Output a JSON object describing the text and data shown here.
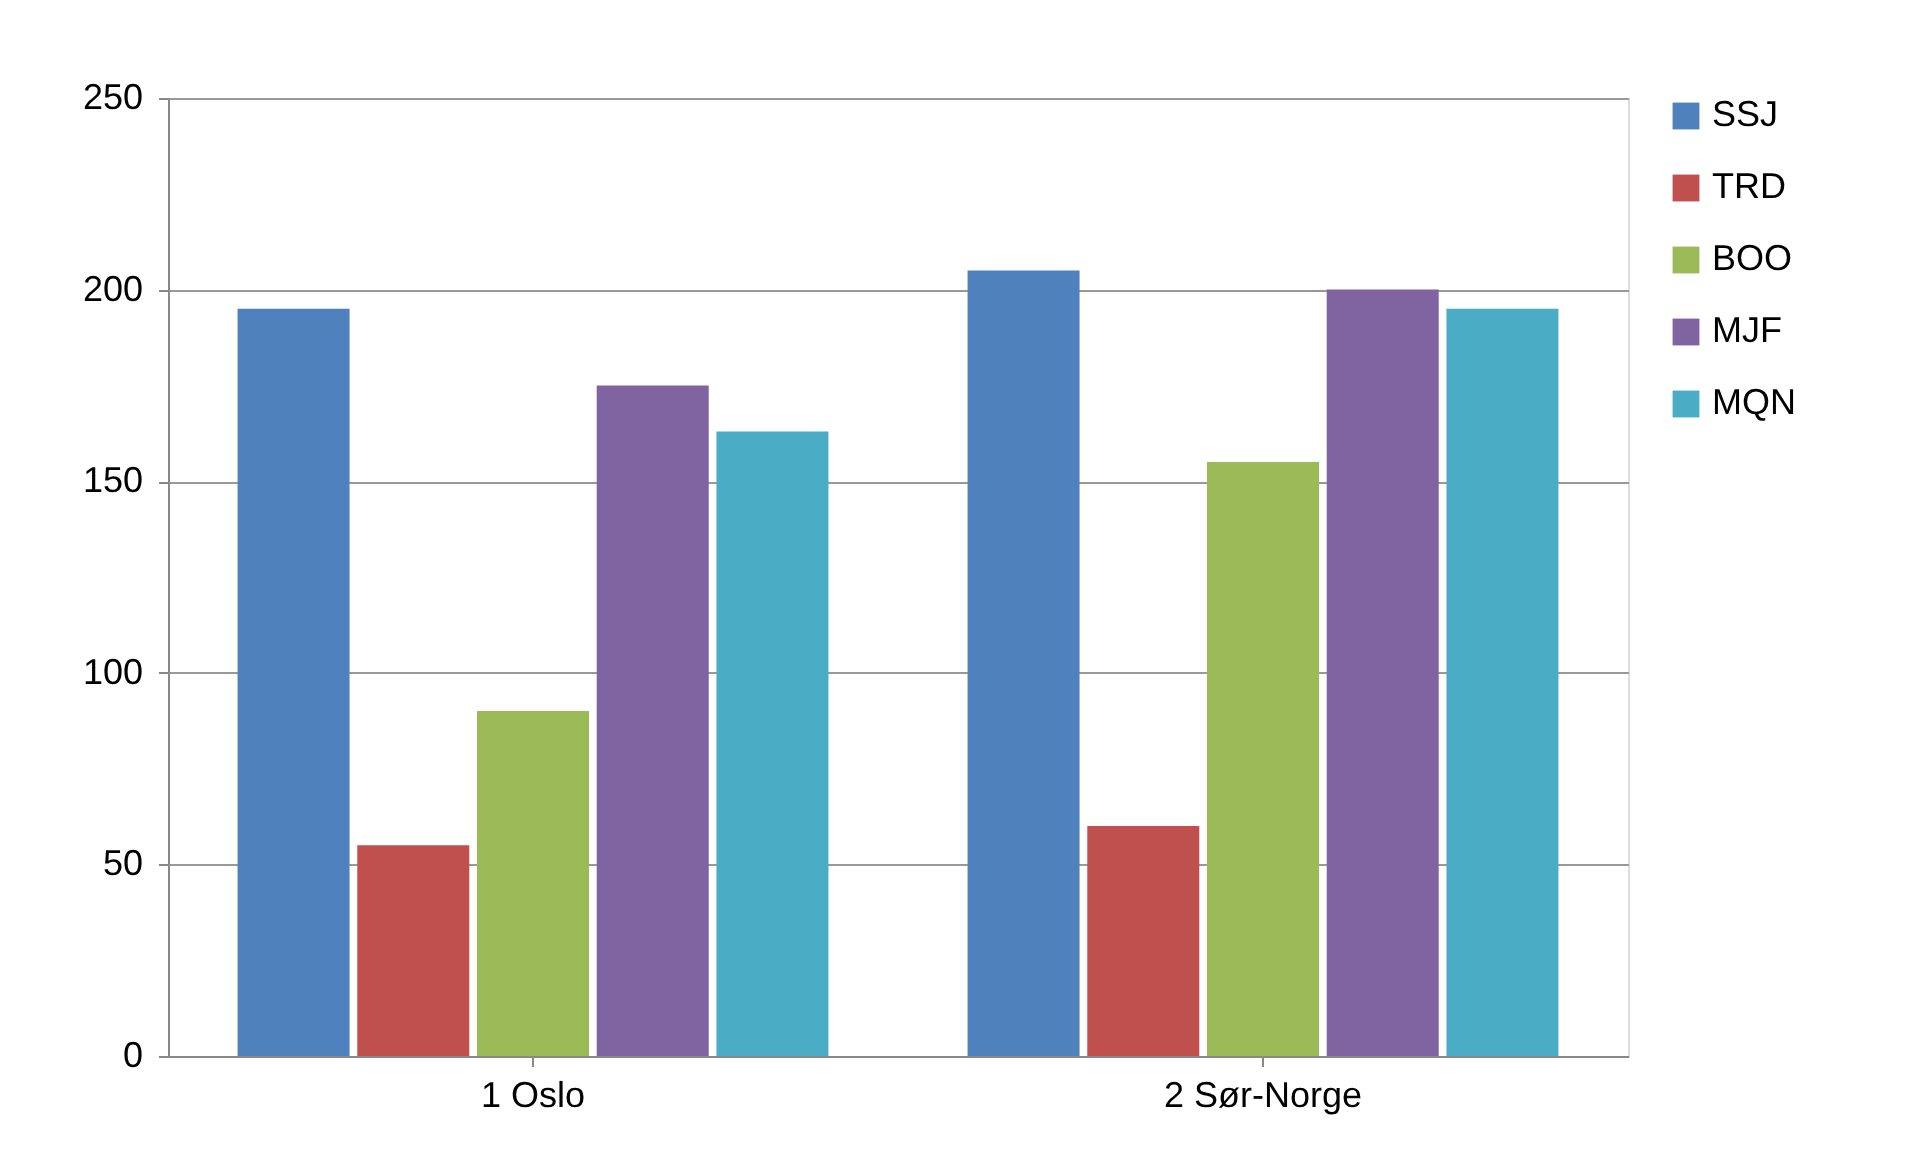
{
  "chart_data": {
    "type": "bar",
    "categories": [
      "1 Oslo",
      "2 Sør-Norge"
    ],
    "series": [
      {
        "name": "SSJ",
        "color": "#4f81bd",
        "values": [
          195,
          205
        ]
      },
      {
        "name": "TRD",
        "color": "#c0504d",
        "values": [
          55,
          60
        ]
      },
      {
        "name": "BOO",
        "color": "#9bbb59",
        "values": [
          90,
          155
        ]
      },
      {
        "name": "MJF",
        "color": "#8064a2",
        "values": [
          175,
          200
        ]
      },
      {
        "name": "MQN",
        "color": "#4bacc6",
        "values": [
          163,
          195
        ]
      }
    ],
    "ylim": [
      0,
      250
    ],
    "yticks": [
      0,
      50,
      100,
      150,
      200,
      250
    ],
    "grid": "y",
    "legend": "right"
  }
}
